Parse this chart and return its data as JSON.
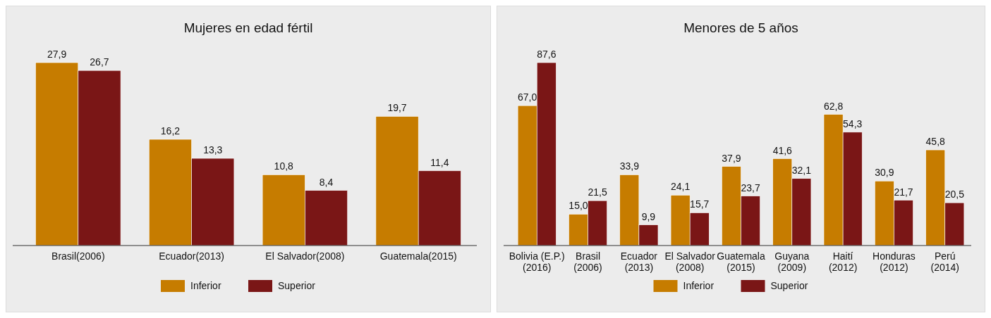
{
  "chart_data": [
    {
      "type": "bar",
      "title": "Mujeres en edad fértil",
      "categories": [
        "Brasil(2006)",
        "Ecuador(2013)",
        "El Salvador(2008)",
        "Guatemala(2015)"
      ],
      "series": [
        {
          "name": "Inferior",
          "color": "#c67c00",
          "values": [
            27.9,
            16.2,
            10.8,
            19.7
          ],
          "value_labels": [
            "27,9",
            "16,2",
            "10,8",
            "19,7"
          ]
        },
        {
          "name": "Superior",
          "color": "#7a1616",
          "values": [
            26.7,
            13.3,
            8.4,
            11.4
          ],
          "value_labels": [
            "26,7",
            "13,3",
            "8,4",
            "11,4"
          ]
        }
      ],
      "tick_labels": "x",
      "legend": "bottom"
    },
    {
      "type": "bar",
      "title": "Menores de 5 años",
      "categories": [
        "Bolivia (E.P.) (2016)",
        "Brasil (2006)",
        "Ecuador (2013)",
        "El Salvador (2008)",
        "Guatemala (2015)",
        "Guyana (2009)",
        "Haití (2012)",
        "Honduras (2012)",
        "Perú (2014)"
      ],
      "series": [
        {
          "name": "Inferior",
          "color": "#c67c00",
          "values": [
            67.0,
            15.0,
            33.9,
            24.1,
            37.9,
            41.6,
            62.8,
            30.9,
            45.8
          ],
          "value_labels": [
            "67,0",
            "15,0",
            "33,9",
            "24,1",
            "37,9",
            "41,6",
            "62,8",
            "30,9",
            "45,8"
          ]
        },
        {
          "name": "Superior",
          "color": "#7a1616",
          "values": [
            87.6,
            21.5,
            9.9,
            15.7,
            23.7,
            32.1,
            54.3,
            21.7,
            20.5
          ],
          "value_labels": [
            "87,6",
            "21,5",
            "9,9",
            "15,7",
            "23,7",
            "32,1",
            "54,3",
            "21,7",
            "20,5"
          ]
        }
      ],
      "tick_labels": "x",
      "legend": "bottom"
    }
  ]
}
